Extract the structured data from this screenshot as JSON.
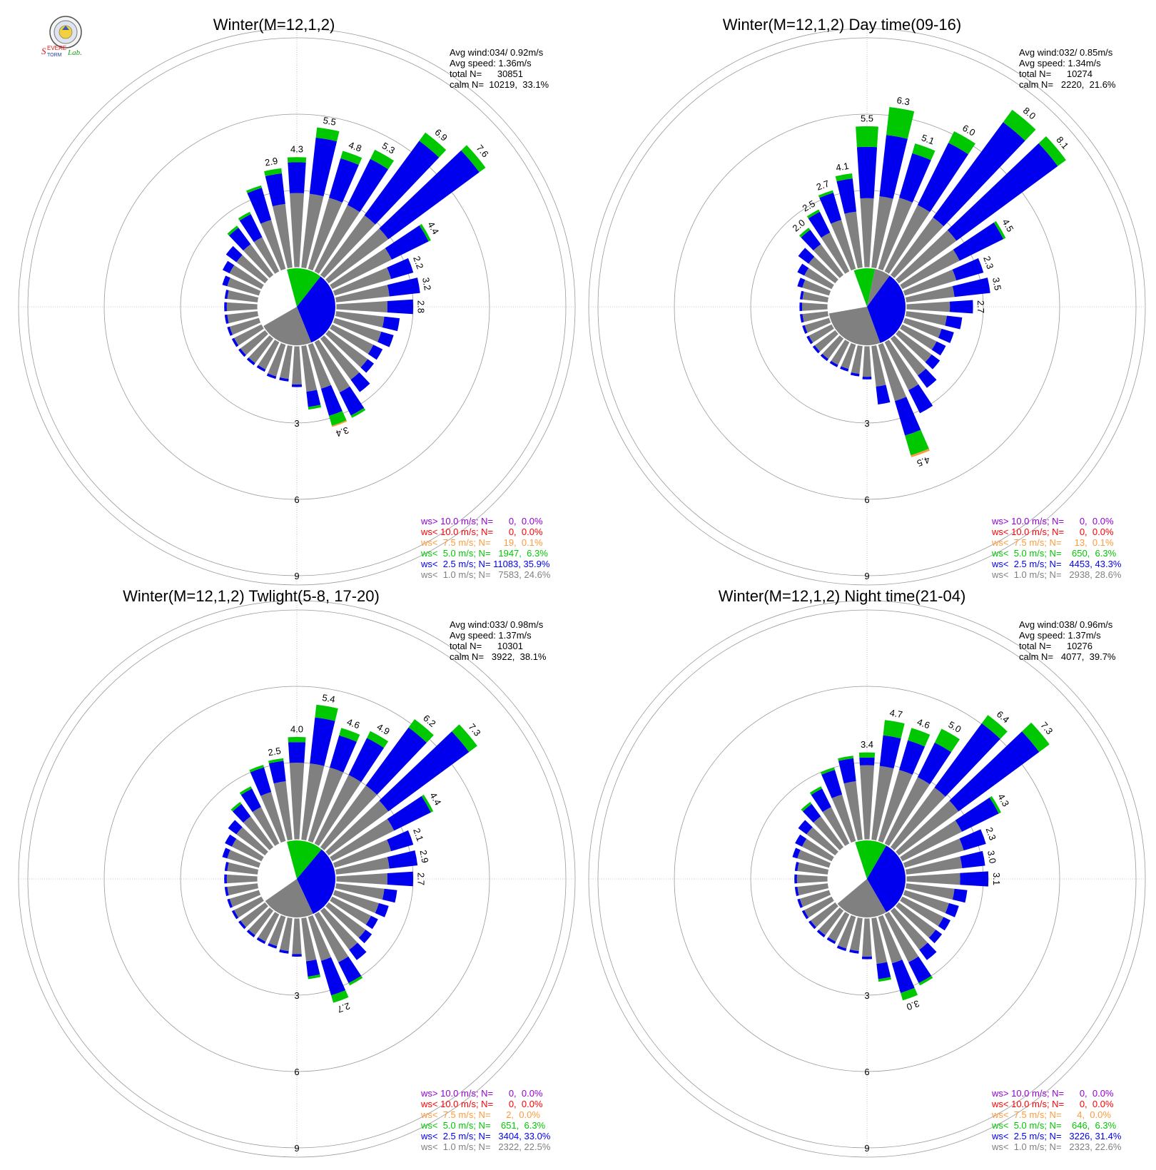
{
  "colors": {
    "calm": "#808080",
    "ws_lt_1": "#808080",
    "ws_lt_2_5": "#0000ee",
    "ws_lt_5": "#00c800",
    "ws_lt_7_5": "#ff9a3c",
    "ws_lt_10": "#ff0000",
    "ws_gt_10": "#9400d3",
    "grid": "#999999",
    "text": "#000000"
  },
  "logo": {
    "icon": "severe-storm-lab-seal-icon",
    "text": "Severe Storm Lab."
  },
  "chart_data": [
    {
      "type": "windrose",
      "title": "Winter(M=12,1,2)",
      "ring_labels": [
        "3",
        "6",
        "9"
      ],
      "ring_values": [
        3,
        6,
        9
      ],
      "stats": [
        "Avg wind:034/ 0.92m/s",
        "Avg speed: 1.36m/s",
        "total N=      30851",
        "calm N=  10219,  33.1%"
      ],
      "legend": [
        {
          "text": "ws> 10.0 m/s; N=      0,  0.0%",
          "color": "#9400d3"
        },
        {
          "text": "ws< 10.0 m/s; N=      0,  0.0%",
          "color": "#ff0000"
        },
        {
          "text": "ws<  7.5 m/s; N=     19,  0.1%",
          "color": "#ff9a3c"
        },
        {
          "text": "ws<  5.0 m/s; N=   1947,  6.3%",
          "color": "#00c800"
        },
        {
          "text": "ws<  2.5 m/s; N= 11083, 35.9%",
          "color": "#0000ee"
        },
        {
          "text": "ws<  1.0 m/s; N=   7583, 24.6%",
          "color": "#808080"
        }
      ],
      "calm_sectors": [
        {
          "from": -15,
          "to": 38,
          "color": "#00c800"
        },
        {
          "from": 38,
          "to": 158,
          "color": "#0000ee"
        },
        {
          "from": 158,
          "to": 240,
          "color": "#808080"
        }
      ],
      "directions": [
        0,
        10,
        20,
        30,
        40,
        50,
        60,
        70,
        80,
        90,
        100,
        110,
        120,
        130,
        140,
        150,
        160,
        170,
        180,
        190,
        200,
        210,
        220,
        230,
        240,
        250,
        260,
        270,
        280,
        290,
        300,
        310,
        320,
        330,
        340,
        350
      ],
      "gray": [
        2.9,
        2.9,
        2.9,
        2.9,
        2.9,
        2.9,
        2.6,
        2.3,
        2.1,
        2.0,
        1.9,
        1.9,
        1.8,
        1.9,
        2.0,
        2.2,
        1.8,
        1.8,
        1.5,
        1.3,
        1.3,
        1.2,
        1.2,
        1.2,
        1.2,
        1.2,
        1.2,
        1.2,
        1.2,
        1.3,
        1.4,
        1.4,
        1.5,
        1.5,
        2.0,
        2.5
      ],
      "blue": [
        1.2,
        2.2,
        1.6,
        2.0,
        3.6,
        4.4,
        1.6,
        0.9,
        1.2,
        1.0,
        0.6,
        0.5,
        0.4,
        0.3,
        0.6,
        1.0,
        1.1,
        0.6,
        0.1,
        0.1,
        0.1,
        0.1,
        0.1,
        0.1,
        0.1,
        0.1,
        0.1,
        0.1,
        0.1,
        0.2,
        0.3,
        0.5,
        0.8,
        1.0,
        1.3,
        1.2
      ],
      "green": [
        0.2,
        0.4,
        0.3,
        0.4,
        0.4,
        0.3,
        0.1,
        0.0,
        0.0,
        0.0,
        0.0,
        0.0,
        0.0,
        0.0,
        0.0,
        0.1,
        0.4,
        0.1,
        0.0,
        0.0,
        0.0,
        0.0,
        0.0,
        0.0,
        0.0,
        0.0,
        0.0,
        0.0,
        0.0,
        0.0,
        0.0,
        0.0,
        0.1,
        0.1,
        0.1,
        0.2
      ],
      "orange": [
        0,
        0,
        0,
        0,
        0,
        0,
        0,
        0,
        0,
        0,
        0,
        0,
        0,
        0,
        0,
        0,
        0.05,
        0,
        0,
        0,
        0,
        0,
        0,
        0,
        0,
        0,
        0,
        0,
        0,
        0,
        0,
        0,
        0,
        0,
        0,
        0
      ],
      "bar_labels": [
        {
          "dir": 0,
          "text": "4.3"
        },
        {
          "dir": 10,
          "text": "5.5"
        },
        {
          "dir": 20,
          "text": "4.8"
        },
        {
          "dir": 30,
          "text": "5.3"
        },
        {
          "dir": 40,
          "text": "6.9"
        },
        {
          "dir": 50,
          "text": "7.6"
        },
        {
          "dir": 60,
          "text": "4.4"
        },
        {
          "dir": 70,
          "text": "2.2"
        },
        {
          "dir": 80,
          "text": "3.2"
        },
        {
          "dir": 90,
          "text": "2.8"
        },
        {
          "dir": 160,
          "text": "3.4"
        },
        {
          "dir": 350,
          "text": "2.9"
        }
      ]
    },
    {
      "type": "windrose",
      "title": "Winter(M=12,1,2) Day time(09-16)",
      "ring_labels": [
        "3",
        "6",
        "9"
      ],
      "ring_values": [
        3,
        6,
        9
      ],
      "stats": [
        "Avg wind:032/ 0.85m/s",
        "Avg speed: 1.34m/s",
        "total N=      10274",
        "calm N=   2220,  21.6%"
      ],
      "legend": [
        {
          "text": "ws> 10.0 m/s; N=      0,  0.0%",
          "color": "#9400d3"
        },
        {
          "text": "ws< 10.0 m/s; N=      0,  0.0%",
          "color": "#ff0000"
        },
        {
          "text": "ws<  7.5 m/s; N=     13,  0.1%",
          "color": "#ff9a3c"
        },
        {
          "text": "ws<  5.0 m/s; N=    650,  6.3%",
          "color": "#00c800"
        },
        {
          "text": "ws<  2.5 m/s; N=   4453, 43.3%",
          "color": "#0000ee"
        },
        {
          "text": "ws<  1.0 m/s; N=   2938, 28.6%",
          "color": "#808080"
        }
      ],
      "calm_sectors": [
        {
          "from": 12,
          "to": 36,
          "color": "#808080"
        },
        {
          "from": -20,
          "to": 12,
          "color": "#00c800"
        },
        {
          "from": 36,
          "to": 160,
          "color": "#0000ee"
        },
        {
          "from": 160,
          "to": 260,
          "color": "#808080"
        }
      ],
      "directions": [
        0,
        10,
        20,
        30,
        40,
        50,
        60,
        70,
        80,
        90,
        100,
        110,
        120,
        130,
        140,
        150,
        160,
        170,
        180,
        190,
        200,
        210,
        220,
        230,
        240,
        250,
        260,
        270,
        280,
        290,
        300,
        310,
        320,
        330,
        340,
        350
      ],
      "gray": [
        2.7,
        2.8,
        2.9,
        2.9,
        2.8,
        2.8,
        2.5,
        2.1,
        1.9,
        1.7,
        1.6,
        1.5,
        1.5,
        1.6,
        1.8,
        2.1,
        2.3,
        1.6,
        1.2,
        1.1,
        1.0,
        1.0,
        1.0,
        1.0,
        1.0,
        1.0,
        1.0,
        1.0,
        1.0,
        1.1,
        1.2,
        1.3,
        1.5,
        1.7,
        2.0,
        2.2
      ],
      "blue": [
        2.0,
        2.4,
        1.8,
        2.7,
        4.6,
        4.9,
        1.9,
        1.1,
        1.4,
        0.9,
        0.6,
        0.5,
        0.4,
        0.4,
        0.6,
        1.0,
        1.4,
        0.7,
        0.1,
        0.1,
        0.1,
        0.1,
        0.1,
        0.1,
        0.1,
        0.1,
        0.1,
        0.1,
        0.1,
        0.2,
        0.3,
        0.5,
        0.7,
        0.9,
        1.1,
        1.3
      ],
      "green": [
        0.8,
        1.1,
        0.4,
        0.5,
        0.6,
        0.4,
        0.1,
        0.0,
        0.0,
        0.0,
        0.0,
        0.0,
        0.0,
        0.0,
        0.0,
        0.0,
        0.8,
        0.0,
        0.0,
        0.0,
        0.0,
        0.0,
        0.0,
        0.0,
        0.0,
        0.0,
        0.0,
        0.0,
        0.0,
        0.0,
        0.0,
        0.0,
        0.1,
        0.1,
        0.1,
        0.2
      ],
      "orange": [
        0,
        0,
        0,
        0,
        0,
        0,
        0,
        0,
        0,
        0,
        0,
        0,
        0,
        0,
        0,
        0,
        0.08,
        0,
        0,
        0,
        0,
        0,
        0,
        0,
        0,
        0,
        0,
        0,
        0,
        0,
        0,
        0,
        0,
        0,
        0,
        0
      ],
      "bar_labels": [
        {
          "dir": 0,
          "text": "5.5"
        },
        {
          "dir": 10,
          "text": "6.3"
        },
        {
          "dir": 20,
          "text": "5.1"
        },
        {
          "dir": 30,
          "text": "6.0"
        },
        {
          "dir": 40,
          "text": "8.0"
        },
        {
          "dir": 50,
          "text": "8.1"
        },
        {
          "dir": 60,
          "text": "4.5"
        },
        {
          "dir": 70,
          "text": "2.3"
        },
        {
          "dir": 80,
          "text": "3.5"
        },
        {
          "dir": 90,
          "text": "2.7"
        },
        {
          "dir": 160,
          "text": "4.5"
        },
        {
          "dir": 350,
          "text": "4.1"
        },
        {
          "dir": 340,
          "text": "2.7"
        },
        {
          "dir": 330,
          "text": "2.5"
        },
        {
          "dir": 320,
          "text": "2.0"
        }
      ]
    },
    {
      "type": "windrose",
      "title": "Winter(M=12,1,2) Twlight(5-8, 17-20)",
      "ring_labels": [
        "3",
        "6",
        "9"
      ],
      "ring_values": [
        3,
        6,
        9
      ],
      "stats": [
        "Avg wind:033/ 0.98m/s",
        "Avg speed: 1.37m/s",
        "total N=      10301",
        "calm N=   3922,  38.1%"
      ],
      "legend": [
        {
          "text": "ws> 10.0 m/s; N=      0,  0.0%",
          "color": "#9400d3"
        },
        {
          "text": "ws< 10.0 m/s; N=      0,  0.0%",
          "color": "#ff0000"
        },
        {
          "text": "ws<  7.5 m/s; N=      2,  0.0%",
          "color": "#ff9a3c"
        },
        {
          "text": "ws<  5.0 m/s; N=    651,  6.3%",
          "color": "#00c800"
        },
        {
          "text": "ws<  2.5 m/s; N=   3404, 33.0%",
          "color": "#0000ee"
        },
        {
          "text": "ws<  1.0 m/s; N=   2322, 22.5%",
          "color": "#808080"
        }
      ],
      "calm_sectors": [
        {
          "from": -15,
          "to": 40,
          "color": "#00c800"
        },
        {
          "from": 40,
          "to": 155,
          "color": "#0000ee"
        },
        {
          "from": 155,
          "to": 235,
          "color": "#808080"
        }
      ],
      "directions": [
        0,
        10,
        20,
        30,
        40,
        50,
        60,
        70,
        80,
        90,
        100,
        110,
        120,
        130,
        140,
        150,
        160,
        170,
        180,
        190,
        200,
        210,
        220,
        230,
        240,
        250,
        260,
        270,
        280,
        290,
        300,
        310,
        320,
        330,
        340,
        350
      ],
      "gray": [
        3.0,
        3.0,
        3.0,
        3.0,
        3.0,
        2.9,
        2.7,
        2.3,
        2.1,
        2.0,
        1.9,
        1.8,
        1.7,
        1.8,
        1.9,
        2.1,
        1.8,
        1.7,
        1.4,
        1.3,
        1.2,
        1.2,
        1.2,
        1.2,
        1.2,
        1.2,
        1.2,
        1.2,
        1.2,
        1.3,
        1.3,
        1.4,
        1.5,
        1.6,
        2.0,
        2.3
      ],
      "blue": [
        0.8,
        1.8,
        1.3,
        1.6,
        2.8,
        3.9,
        1.6,
        0.9,
        1.1,
        1.0,
        0.5,
        0.4,
        0.3,
        0.3,
        0.5,
        0.9,
        1.4,
        0.6,
        0.1,
        0.1,
        0.1,
        0.1,
        0.1,
        0.1,
        0.1,
        0.1,
        0.1,
        0.1,
        0.1,
        0.2,
        0.3,
        0.4,
        0.6,
        0.8,
        1.0,
        0.8
      ],
      "green": [
        0.2,
        0.5,
        0.3,
        0.3,
        0.4,
        0.4,
        0.1,
        0.0,
        0.0,
        0.0,
        0.0,
        0.0,
        0.0,
        0.0,
        0.0,
        0.1,
        0.3,
        0.1,
        0.0,
        0.0,
        0.0,
        0.0,
        0.0,
        0.0,
        0.0,
        0.0,
        0.0,
        0.0,
        0.0,
        0.0,
        0.0,
        0.0,
        0.1,
        0.1,
        0.1,
        0.1
      ],
      "orange": [
        0,
        0,
        0,
        0,
        0,
        0,
        0,
        0,
        0,
        0,
        0,
        0,
        0,
        0,
        0,
        0,
        0,
        0,
        0,
        0,
        0,
        0,
        0,
        0,
        0,
        0,
        0,
        0,
        0,
        0,
        0,
        0,
        0,
        0,
        0,
        0
      ],
      "bar_labels": [
        {
          "dir": 0,
          "text": "4.0"
        },
        {
          "dir": 10,
          "text": "5.4"
        },
        {
          "dir": 20,
          "text": "4.6"
        },
        {
          "dir": 30,
          "text": "4.9"
        },
        {
          "dir": 40,
          "text": "6.2"
        },
        {
          "dir": 50,
          "text": "7.3"
        },
        {
          "dir": 60,
          "text": "4.4"
        },
        {
          "dir": 70,
          "text": "2.1"
        },
        {
          "dir": 80,
          "text": "2.9"
        },
        {
          "dir": 90,
          "text": "2.7"
        },
        {
          "dir": 160,
          "text": "2.7"
        },
        {
          "dir": 350,
          "text": "2.5"
        }
      ]
    },
    {
      "type": "windrose",
      "title": "Winter(M=12,1,2) Night time(21-04)",
      "ring_labels": [
        "3",
        "6",
        "9"
      ],
      "ring_values": [
        3,
        6,
        9
      ],
      "stats": [
        "Avg wind:038/ 0.96m/s",
        "Avg speed: 1.37m/s",
        "total N=      10276",
        "calm N=   4077,  39.7%"
      ],
      "legend": [
        {
          "text": "ws> 10.0 m/s; N=      0,  0.0%",
          "color": "#9400d3"
        },
        {
          "text": "ws< 10.0 m/s; N=      0,  0.0%",
          "color": "#ff0000"
        },
        {
          "text": "ws<  7.5 m/s; N=      4,  0.0%",
          "color": "#ff9a3c"
        },
        {
          "text": "ws<  5.0 m/s; N=    646,  6.3%",
          "color": "#00c800"
        },
        {
          "text": "ws<  2.5 m/s; N=   3226, 31.4%",
          "color": "#0000ee"
        },
        {
          "text": "ws<  1.0 m/s; N=   2323, 22.6%",
          "color": "#808080"
        }
      ],
      "calm_sectors": [
        {
          "from": -18,
          "to": 30,
          "color": "#00c800"
        },
        {
          "from": 30,
          "to": 150,
          "color": "#0000ee"
        },
        {
          "from": 150,
          "to": 230,
          "color": "#808080"
        }
      ],
      "directions": [
        0,
        10,
        20,
        30,
        40,
        50,
        60,
        70,
        80,
        90,
        100,
        110,
        120,
        130,
        140,
        150,
        160,
        170,
        180,
        190,
        200,
        210,
        220,
        230,
        240,
        250,
        260,
        270,
        280,
        290,
        300,
        310,
        320,
        330,
        340,
        350
      ],
      "gray": [
        2.9,
        2.9,
        2.9,
        2.9,
        2.9,
        2.9,
        2.6,
        2.4,
        2.2,
        2.1,
        1.9,
        1.8,
        1.8,
        1.8,
        1.9,
        2.1,
        1.9,
        1.8,
        1.5,
        1.3,
        1.3,
        1.2,
        1.2,
        1.2,
        1.2,
        1.2,
        1.2,
        1.2,
        1.2,
        1.3,
        1.3,
        1.4,
        1.5,
        1.6,
        1.9,
        2.3
      ],
      "blue": [
        0.3,
        1.2,
        1.2,
        1.5,
        3.1,
        3.9,
        1.6,
        0.9,
        0.9,
        1.1,
        0.5,
        0.4,
        0.3,
        0.3,
        0.5,
        0.9,
        1.2,
        0.6,
        0.1,
        0.1,
        0.1,
        0.1,
        0.1,
        0.1,
        0.1,
        0.1,
        0.1,
        0.1,
        0.1,
        0.2,
        0.3,
        0.4,
        0.6,
        0.8,
        1.0,
        0.9
      ],
      "green": [
        0.2,
        0.6,
        0.5,
        0.6,
        0.4,
        0.5,
        0.1,
        0.0,
        0.0,
        0.0,
        0.0,
        0.0,
        0.0,
        0.0,
        0.0,
        0.1,
        0.3,
        0.1,
        0.0,
        0.0,
        0.0,
        0.0,
        0.0,
        0.0,
        0.0,
        0.0,
        0.0,
        0.0,
        0.0,
        0.0,
        0.0,
        0.0,
        0.1,
        0.1,
        0.1,
        0.1
      ],
      "orange": [
        0,
        0,
        0,
        0,
        0,
        0,
        0,
        0,
        0,
        0,
        0,
        0,
        0,
        0,
        0,
        0,
        0,
        0,
        0,
        0,
        0,
        0,
        0,
        0,
        0,
        0,
        0,
        0,
        0,
        0,
        0,
        0,
        0,
        0,
        0,
        0
      ],
      "bar_labels": [
        {
          "dir": 0,
          "text": "3.4"
        },
        {
          "dir": 10,
          "text": "4.7"
        },
        {
          "dir": 20,
          "text": "4.6"
        },
        {
          "dir": 30,
          "text": "5.0"
        },
        {
          "dir": 40,
          "text": "6.4"
        },
        {
          "dir": 50,
          "text": "7.3"
        },
        {
          "dir": 60,
          "text": "4.3"
        },
        {
          "dir": 70,
          "text": "2.3"
        },
        {
          "dir": 80,
          "text": "3.0"
        },
        {
          "dir": 90,
          "text": "3.1"
        },
        {
          "dir": 160,
          "text": "3.0"
        }
      ]
    }
  ]
}
